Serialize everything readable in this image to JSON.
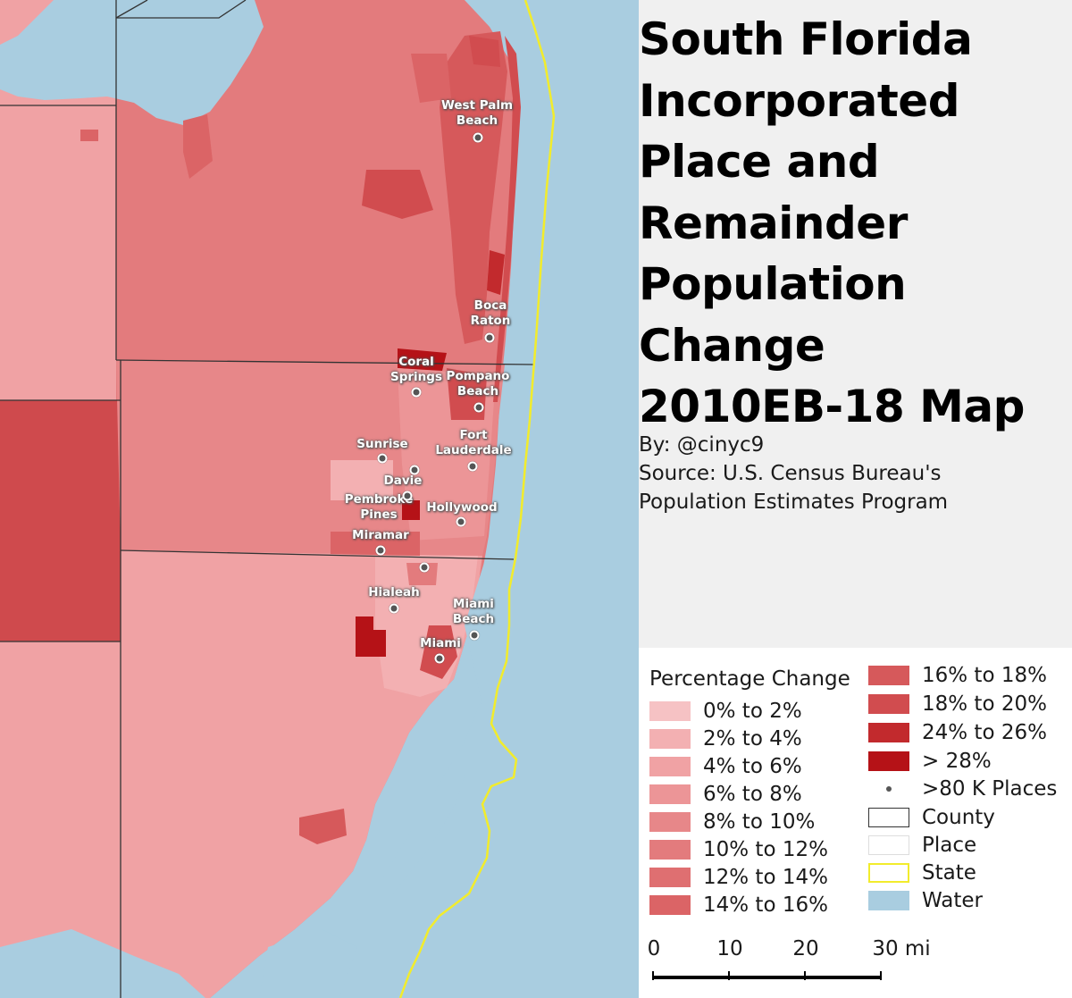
{
  "title": "South Florida\nIncorporated\nPlace and\nRemainder\nPopulation\nChange\n2010EB-18 Map",
  "byline": "By: @cinyc9",
  "source_line1": "Source: U.S. Census Bureau's",
  "source_line2": "Population Estimates Program",
  "colors": {
    "water": "#a9cde0",
    "state_line": "#f2ec2c",
    "county_line": "#333333",
    "dot": "#555555"
  },
  "cities": [
    {
      "name": "West Palm\nBeach",
      "key": "west-palm-beach"
    },
    {
      "name": "Boca\nRaton",
      "key": "boca-raton"
    },
    {
      "name": "Coral\nSprings",
      "key": "coral-springs"
    },
    {
      "name": "Pompano\nBeach",
      "key": "pompano-beach"
    },
    {
      "name": "Fort\nLauderdale",
      "key": "fort-lauderdale"
    },
    {
      "name": "Sunrise",
      "key": "sunrise"
    },
    {
      "name": "Davie",
      "key": "davie"
    },
    {
      "name": "Pembroke\nPines",
      "key": "pembroke-pines"
    },
    {
      "name": "Hollywood",
      "key": "hollywood"
    },
    {
      "name": "Miramar",
      "key": "miramar"
    },
    {
      "name": "Hialeah",
      "key": "hialeah"
    },
    {
      "name": "Miami\nBeach",
      "key": "miami-beach"
    },
    {
      "name": "Miami",
      "key": "miami"
    }
  ],
  "legend": {
    "title": "Percentage Change",
    "classes": [
      {
        "label": "0% to 2%",
        "color": "#f6c2c4"
      },
      {
        "label": "2% to 4%",
        "color": "#f3b0b2"
      },
      {
        "label": "4% to 6%",
        "color": "#f0a2a4"
      },
      {
        "label": "6% to 8%",
        "color": "#ec9597"
      },
      {
        "label": "8% to 10%",
        "color": "#e78789"
      },
      {
        "label": "10% to 12%",
        "color": "#e37b7d"
      },
      {
        "label": "12% to 14%",
        "color": "#df6f71"
      },
      {
        "label": "14% to 16%",
        "color": "#db6466"
      },
      {
        "label": "16% to 18%",
        "color": "#d6595b"
      },
      {
        "label": "18% to 20%",
        "color": "#d14c4f"
      },
      {
        "label": "24% to 26%",
        "color": "#c22a2d"
      },
      {
        "label": "> 28%",
        "color": "#b51217"
      }
    ],
    "places_label": ">80 K Places",
    "county_label": "County",
    "place_label": "Place",
    "state_label": "State",
    "water_label": "Water"
  },
  "scale": {
    "labels": [
      "0",
      "10",
      "20",
      "30 mi"
    ]
  }
}
